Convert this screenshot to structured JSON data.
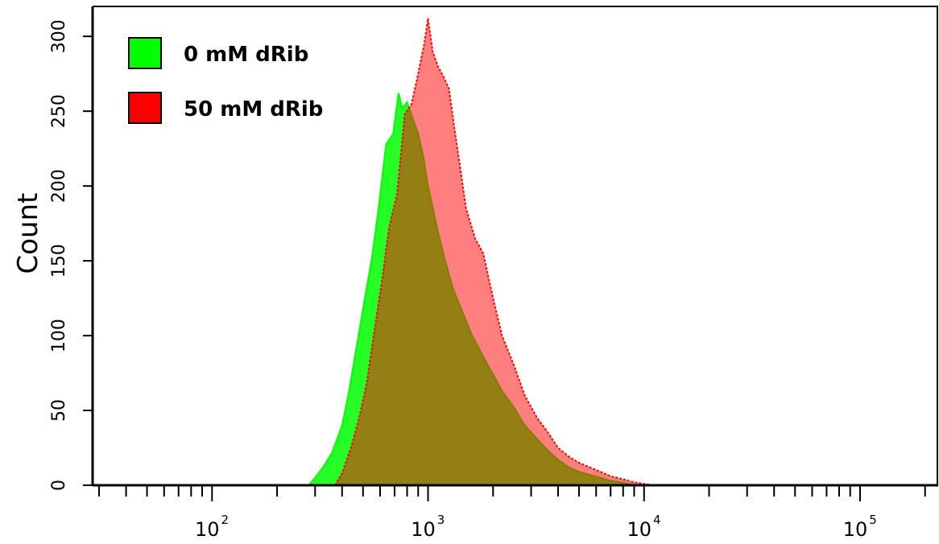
{
  "chart_data": {
    "type": "area",
    "xlabel": "",
    "ylabel": "Count",
    "x_scale": "log",
    "xlim": [
      28,
      230000
    ],
    "ylim": [
      0,
      320
    ],
    "x_ticks": [
      {
        "base": "10",
        "exp": "2",
        "value": 100
      },
      {
        "base": "10",
        "exp": "3",
        "value": 1000
      },
      {
        "base": "10",
        "exp": "4",
        "value": 10000
      },
      {
        "base": "10",
        "exp": "5",
        "value": 100000
      }
    ],
    "y_ticks": [
      "0",
      "50",
      "100",
      "150",
      "200",
      "250",
      "300"
    ],
    "y_tick_values": [
      0,
      50,
      100,
      150,
      200,
      250,
      300
    ],
    "grid": false,
    "legend_position": "top-left",
    "series": [
      {
        "name": "0 mM dRib",
        "color": "#00ff00",
        "fill_opacity": 0.85,
        "x": [
          280,
          300,
          330,
          360,
          400,
          430,
          470,
          510,
          550,
          590,
          640,
          690,
          730,
          760,
          800,
          850,
          900,
          950,
          1000,
          1100,
          1200,
          1300,
          1450,
          1600,
          1800,
          2000,
          2200,
          2500,
          2800,
          3200,
          3600,
          4000,
          4500,
          5000,
          5600,
          6300,
          7000,
          7800,
          8500,
          9200
        ],
        "values": [
          0,
          5,
          13,
          22,
          40,
          62,
          95,
          125,
          152,
          185,
          228,
          235,
          262,
          252,
          256,
          245,
          235,
          220,
          200,
          172,
          150,
          132,
          115,
          100,
          86,
          74,
          63,
          52,
          40,
          31,
          23,
          17,
          12,
          9,
          7,
          5,
          3,
          2,
          1,
          0
        ]
      },
      {
        "name": "50 mM dRib",
        "color": "#ff0000",
        "fill_opacity": 0.5,
        "x": [
          370,
          400,
          440,
          480,
          520,
          560,
          610,
          660,
          720,
          780,
          840,
          900,
          960,
          1000,
          1050,
          1110,
          1180,
          1250,
          1320,
          1400,
          1500,
          1650,
          1800,
          2000,
          2200,
          2500,
          2800,
          3200,
          3600,
          4000,
          4500,
          5000,
          5600,
          6300,
          7000,
          8000,
          9000,
          10000,
          11000,
          13000
        ],
        "values": [
          0,
          8,
          25,
          45,
          68,
          100,
          135,
          172,
          195,
          248,
          255,
          275,
          295,
          312,
          290,
          280,
          273,
          265,
          240,
          215,
          185,
          165,
          155,
          125,
          100,
          80,
          60,
          45,
          35,
          25,
          19,
          15,
          12,
          9,
          6,
          4,
          2,
          1,
          0,
          0
        ]
      }
    ]
  }
}
